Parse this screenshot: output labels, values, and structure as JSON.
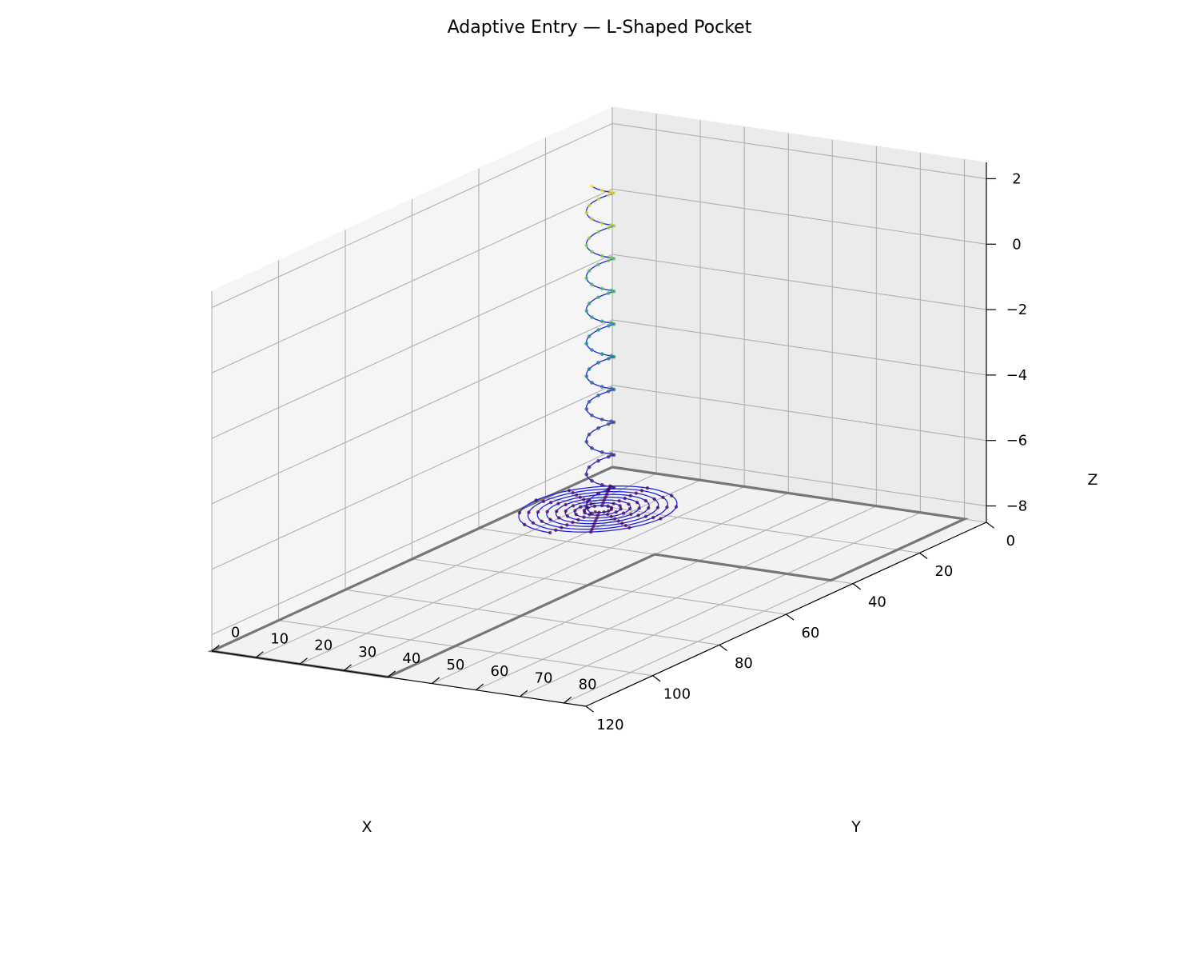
{
  "chart_data": {
    "type": "line3d",
    "title": "Adaptive Entry — L-Shaped Pocket",
    "xlabel": "X",
    "ylabel": "Y",
    "zlabel": "Z",
    "xlim": [
      0,
      120
    ],
    "ylim": [
      0,
      85
    ],
    "zlim": [
      -8.5,
      2.5
    ],
    "x_ticks": [
      "0",
      "20",
      "40",
      "60",
      "80",
      "100",
      "120"
    ],
    "y_ticks": [
      "0",
      "10",
      "20",
      "30",
      "40",
      "50",
      "60",
      "70",
      "80"
    ],
    "z_ticks": [
      "−8",
      "−6",
      "−4",
      "−2",
      "0",
      "2"
    ],
    "grid": true,
    "colors": {
      "pocket_outline": "#777777",
      "toolpath": "#2222dd",
      "colormap_low": "#440154",
      "colormap_mid": "#21918c",
      "colormap_high": "#fde725",
      "pane": "#f2f2f2",
      "grid": "#b0b0b0"
    },
    "series": [
      {
        "kind": "outline",
        "z": -8.5,
        "points": [
          [
            0,
            0
          ],
          [
            120,
            0
          ],
          [
            120,
            40
          ],
          [
            40,
            40
          ],
          [
            40,
            80
          ],
          [
            0,
            80
          ],
          [
            0,
            0
          ]
        ]
      },
      {
        "kind": "helix",
        "center": [
          30,
          20
        ],
        "radius": 2.5,
        "z_start": 2.0,
        "z_end": -8.0,
        "turns": 10
      },
      {
        "kind": "spiral",
        "center": [
          30,
          20
        ],
        "z": -8.0,
        "r_start": 1.5,
        "r_end": 15,
        "turns": 8
      }
    ]
  }
}
